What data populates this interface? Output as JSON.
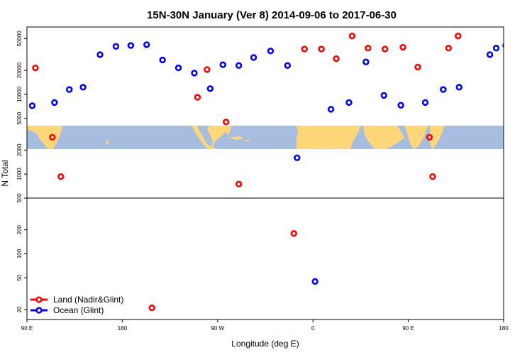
{
  "chart_data": {
    "type": "scatter",
    "title": "15N-30N January (Ver 8)   2014-09-06 to 2017-06-30",
    "xlabel": "Longitude (deg E)",
    "ylabel": "N Total",
    "x_ticks": [
      {
        "value": 90,
        "label": "90 E"
      },
      {
        "value": 180,
        "label": "180"
      },
      {
        "value": 270,
        "label": "90 W"
      },
      {
        "value": 360,
        "label": "0"
      },
      {
        "value": 450,
        "label": "90 E"
      },
      {
        "value": 540,
        "label": "180"
      }
    ],
    "xlim": [
      90,
      540
    ],
    "ylim_log": [
      15,
      70000
    ],
    "y_ticks": [
      {
        "value": 20,
        "label": "20"
      },
      {
        "value": 50,
        "label": "50"
      },
      {
        "value": 100,
        "label": "100"
      },
      {
        "value": 200,
        "label": "200"
      },
      {
        "value": 500,
        "label": "500"
      },
      {
        "value": 1000,
        "label": "1000"
      },
      {
        "value": 2000,
        "label": "2000"
      },
      {
        "value": 5000,
        "label": "5000"
      },
      {
        "value": 10000,
        "label": "10000"
      },
      {
        "value": 20000,
        "label": "20000"
      },
      {
        "value": 50000,
        "label": "50000"
      }
    ],
    "reference_line_y": 500,
    "map_band_lat": [
      15,
      30
    ],
    "series": [
      {
        "name": "Land (Nadir&Glint)",
        "color": "#ff0000",
        "x": [
          98,
          114,
          122,
          208,
          251,
          260,
          278,
          290,
          342,
          352,
          368,
          382,
          397,
          412,
          428,
          445,
          459,
          470,
          473,
          488,
          497
        ],
        "y": [
          21500,
          2900,
          930,
          21,
          9200,
          20500,
          4500,
          750,
          180,
          37000,
          37000,
          28000,
          54000,
          38000,
          37000,
          39000,
          22000,
          2900,
          930,
          38000,
          54000
        ]
      },
      {
        "name": "Ocean (Glint)",
        "color": "#0000ff",
        "x": [
          95,
          116,
          130,
          143,
          159,
          174,
          188,
          203,
          218,
          233,
          248,
          263,
          275,
          290,
          304,
          320,
          336,
          345,
          362,
          377,
          394,
          410,
          427,
          443,
          466,
          483,
          498,
          527,
          533,
          542
        ],
        "y": [
          7200,
          7900,
          11500,
          12300,
          31500,
          40000,
          41000,
          42000,
          27000,
          21500,
          18500,
          11800,
          23500,
          23000,
          29000,
          35000,
          23000,
          1600,
          45,
          6500,
          7900,
          25500,
          9700,
          7300,
          7900,
          11500,
          12300,
          31500,
          38000,
          41000
        ]
      }
    ],
    "legend": {
      "position": "bottom-left",
      "entries": [
        "Land (Nadir&Glint)",
        "Ocean (Glint)"
      ]
    }
  }
}
